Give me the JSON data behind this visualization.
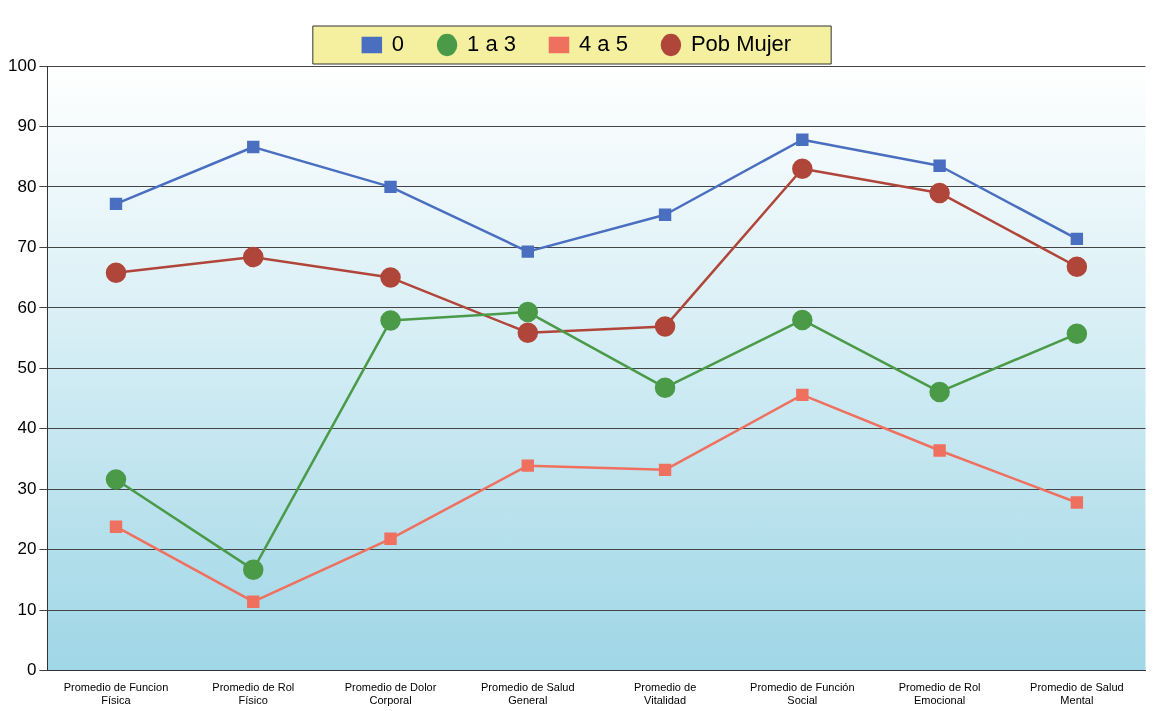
{
  "chart_data": {
    "type": "line",
    "categories": [
      "Promedio de Funcion Física",
      "Promedio de Rol Físico",
      "Promedio de Dolor Corporal",
      "Promedio de Salud General",
      "Promedio de Vitalidad",
      "Promedio de Función Social",
      "Promedio de Rol Emocional",
      "Promedio de Salud Mental"
    ],
    "series": [
      {
        "name": "0",
        "color": "#4a6fc0",
        "marker": "square",
        "values": [
          77.2,
          86.6,
          80.0,
          69.3,
          75.4,
          87.8,
          83.5,
          71.4
        ]
      },
      {
        "name": "1 a 3",
        "color": "#4a9a48",
        "marker": "circle",
        "values": [
          31.6,
          16.7,
          57.9,
          59.3,
          46.8,
          58.0,
          46.1,
          55.7
        ]
      },
      {
        "name": "4 a 5",
        "color": "#f07060",
        "marker": "square",
        "values": [
          23.8,
          11.4,
          21.8,
          33.9,
          33.2,
          45.6,
          36.4,
          27.8
        ]
      },
      {
        "name": "Pob Mujer",
        "color": "#b0453a",
        "marker": "circle",
        "values": [
          65.8,
          68.4,
          65.0,
          55.9,
          56.9,
          83.0,
          79.0,
          66.8
        ]
      }
    ],
    "ylim": [
      0,
      100
    ],
    "yticks": [
      0,
      10,
      20,
      30,
      40,
      50,
      60,
      70,
      80,
      90,
      100
    ],
    "grid": "y",
    "legend": "top"
  }
}
